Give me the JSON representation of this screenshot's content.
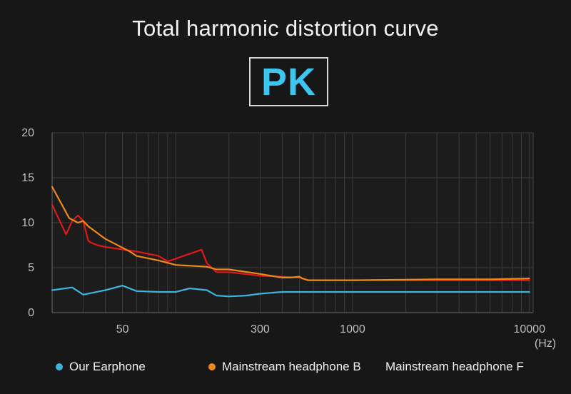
{
  "header": {
    "title": "Total harmonic distortion curve",
    "badge": "PK"
  },
  "chart_data": {
    "type": "line",
    "title": "Total harmonic distortion curve",
    "xscale": "log",
    "xlim": [
      20,
      10500
    ],
    "ylim": [
      0,
      20
    ],
    "grid": true,
    "legend_position": "bottom",
    "x_unit_label": "(Hz)",
    "x_ticks": [
      50,
      300,
      1000,
      10000
    ],
    "x_tick_labels": [
      "50",
      "300",
      "1000",
      "10000"
    ],
    "y_ticks": [
      0,
      5,
      10,
      15,
      20
    ],
    "y_tick_labels": [
      "0",
      "5",
      "10",
      "15",
      "20"
    ],
    "series": [
      {
        "name": "Our Earphone",
        "color": "#3cb4dc",
        "x": [
          20,
          26,
          30,
          40,
          50,
          60,
          80,
          100,
          120,
          150,
          170,
          200,
          250,
          300,
          400,
          500,
          600,
          700,
          1000,
          2000,
          5000,
          10000
        ],
        "y": [
          2.5,
          2.8,
          2.0,
          2.5,
          3.0,
          2.4,
          2.3,
          2.3,
          2.7,
          2.5,
          1.9,
          1.8,
          1.9,
          2.1,
          2.3,
          2.3,
          2.3,
          2.3,
          2.3,
          2.3,
          2.3,
          2.3
        ]
      },
      {
        "name": "Mainstream headphone B",
        "color": "#ee8a1a",
        "x": [
          20,
          25,
          28,
          30,
          32,
          40,
          55,
          60,
          80,
          100,
          150,
          170,
          200,
          300,
          400,
          450,
          500,
          520,
          560,
          700,
          1000,
          3000,
          6000,
          10000
        ],
        "y": [
          14.0,
          10.5,
          10.0,
          10.2,
          9.6,
          8.2,
          6.8,
          6.3,
          5.8,
          5.3,
          5.1,
          4.8,
          4.8,
          4.3,
          3.9,
          3.9,
          4.0,
          3.8,
          3.6,
          3.6,
          3.6,
          3.7,
          3.7,
          3.8
        ]
      },
      {
        "name": "Mainstream headphone F",
        "color": "#e01818",
        "x": [
          20,
          24,
          26,
          28,
          30,
          32,
          33,
          36,
          40,
          60,
          80,
          90,
          100,
          140,
          150,
          170,
          200,
          300,
          500,
          560,
          1000,
          3000,
          10000
        ],
        "y": [
          12.0,
          8.7,
          10.2,
          10.8,
          10.2,
          8.0,
          7.8,
          7.5,
          7.3,
          6.8,
          6.3,
          5.7,
          6.0,
          7.0,
          5.5,
          4.5,
          4.5,
          4.1,
          3.9,
          3.6,
          3.6,
          3.6,
          3.6
        ]
      }
    ]
  }
}
